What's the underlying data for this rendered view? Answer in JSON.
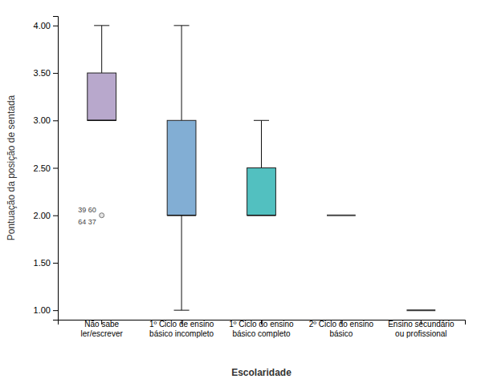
{
  "chart_data": {
    "type": "box",
    "xlabel": "Escolaridade",
    "ylabel": "Pontuação da posição de sentada",
    "categories": [
      "Não sabe\nler/escrever",
      "1º Ciclo de ensino\nbásico incompleto",
      "1º Ciclo do ensino\nbásico completo",
      "2º Ciclo do ensino\nbásico",
      "Ensino secundário\nou profissional"
    ],
    "boxes": [
      {
        "q1": 3.0,
        "median": 3.0,
        "q3": 3.5,
        "whisker_low": 3.0,
        "whisker_high": 4.0,
        "color": "#b8a8cc",
        "outliers": [
          {
            "value": 2.0,
            "labels": [
              "39  60",
              "64  37"
            ]
          }
        ]
      },
      {
        "q1": 2.0,
        "median": 2.0,
        "q3": 3.0,
        "whisker_low": 1.0,
        "whisker_high": 4.0,
        "color": "#82aed4"
      },
      {
        "q1": 2.0,
        "median": 2.0,
        "q3": 2.5,
        "whisker_low": 2.0,
        "whisker_high": 3.0,
        "color": "#52c0c0"
      },
      {
        "q1": 2.0,
        "median": 2.0,
        "q3": 2.0,
        "whisker_low": 2.0,
        "whisker_high": 2.0,
        "color": "#444444"
      },
      {
        "q1": 1.0,
        "median": 1.0,
        "q3": 1.0,
        "whisker_low": 1.0,
        "whisker_high": 1.0,
        "color": "#333333"
      }
    ],
    "ylim": [
      0.9,
      4.1
    ],
    "yticks": [
      {
        "value": 1.0,
        "label": "1.00"
      },
      {
        "value": 1.5,
        "label": "1.50"
      },
      {
        "value": 2.0,
        "label": "2.00"
      },
      {
        "value": 2.5,
        "label": "2.50"
      },
      {
        "value": 3.0,
        "label": "3.00"
      },
      {
        "value": 3.5,
        "label": "3.50"
      },
      {
        "value": 4.0,
        "label": "4.00"
      }
    ],
    "grid": false
  }
}
